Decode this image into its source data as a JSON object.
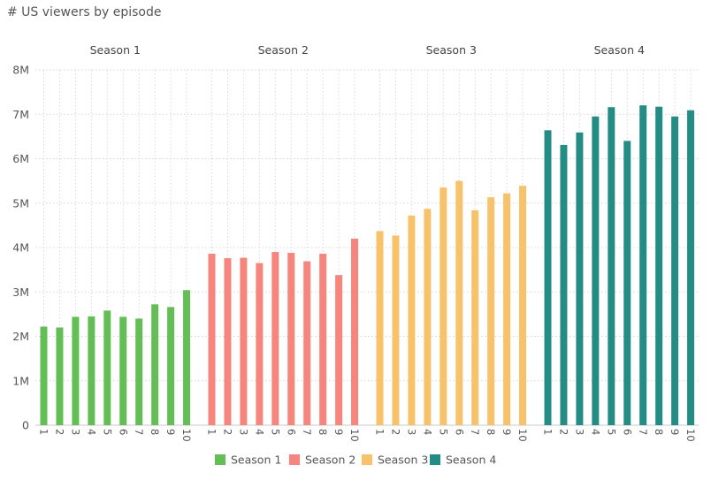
{
  "chart_data": {
    "type": "bar",
    "title": "# US viewers by episode",
    "xlabel": "",
    "ylabel": "",
    "ylim": [
      0,
      8000000
    ],
    "y_ticks": [
      {
        "value": 0,
        "label": "0"
      },
      {
        "value": 1000000,
        "label": "1M"
      },
      {
        "value": 2000000,
        "label": "2M"
      },
      {
        "value": 3000000,
        "label": "3M"
      },
      {
        "value": 4000000,
        "label": "4M"
      },
      {
        "value": 5000000,
        "label": "5M"
      },
      {
        "value": 6000000,
        "label": "6M"
      },
      {
        "value": 7000000,
        "label": "7M"
      },
      {
        "value": 8000000,
        "label": "8M"
      }
    ],
    "categories": [
      "1",
      "2",
      "3",
      "4",
      "5",
      "6",
      "7",
      "8",
      "9",
      "10"
    ],
    "grid": true,
    "legend": "bottom",
    "series": [
      {
        "name": "Season 1",
        "color": "#63BE55",
        "values": [
          2220000,
          2200000,
          2440000,
          2450000,
          2580000,
          2440000,
          2400000,
          2720000,
          2660000,
          3040000
        ]
      },
      {
        "name": "Season 2",
        "color": "#F5857D",
        "values": [
          3860000,
          3760000,
          3770000,
          3650000,
          3900000,
          3880000,
          3690000,
          3860000,
          3380000,
          4200000
        ]
      },
      {
        "name": "Season 3",
        "color": "#F7C26A",
        "values": [
          4370000,
          4270000,
          4720000,
          4870000,
          5350000,
          5500000,
          4840000,
          5130000,
          5220000,
          5390000
        ]
      },
      {
        "name": "Season 4",
        "color": "#238C85",
        "values": [
          6640000,
          6310000,
          6590000,
          6950000,
          7160000,
          6400000,
          7200000,
          7170000,
          6950000,
          7090000
        ]
      }
    ]
  }
}
